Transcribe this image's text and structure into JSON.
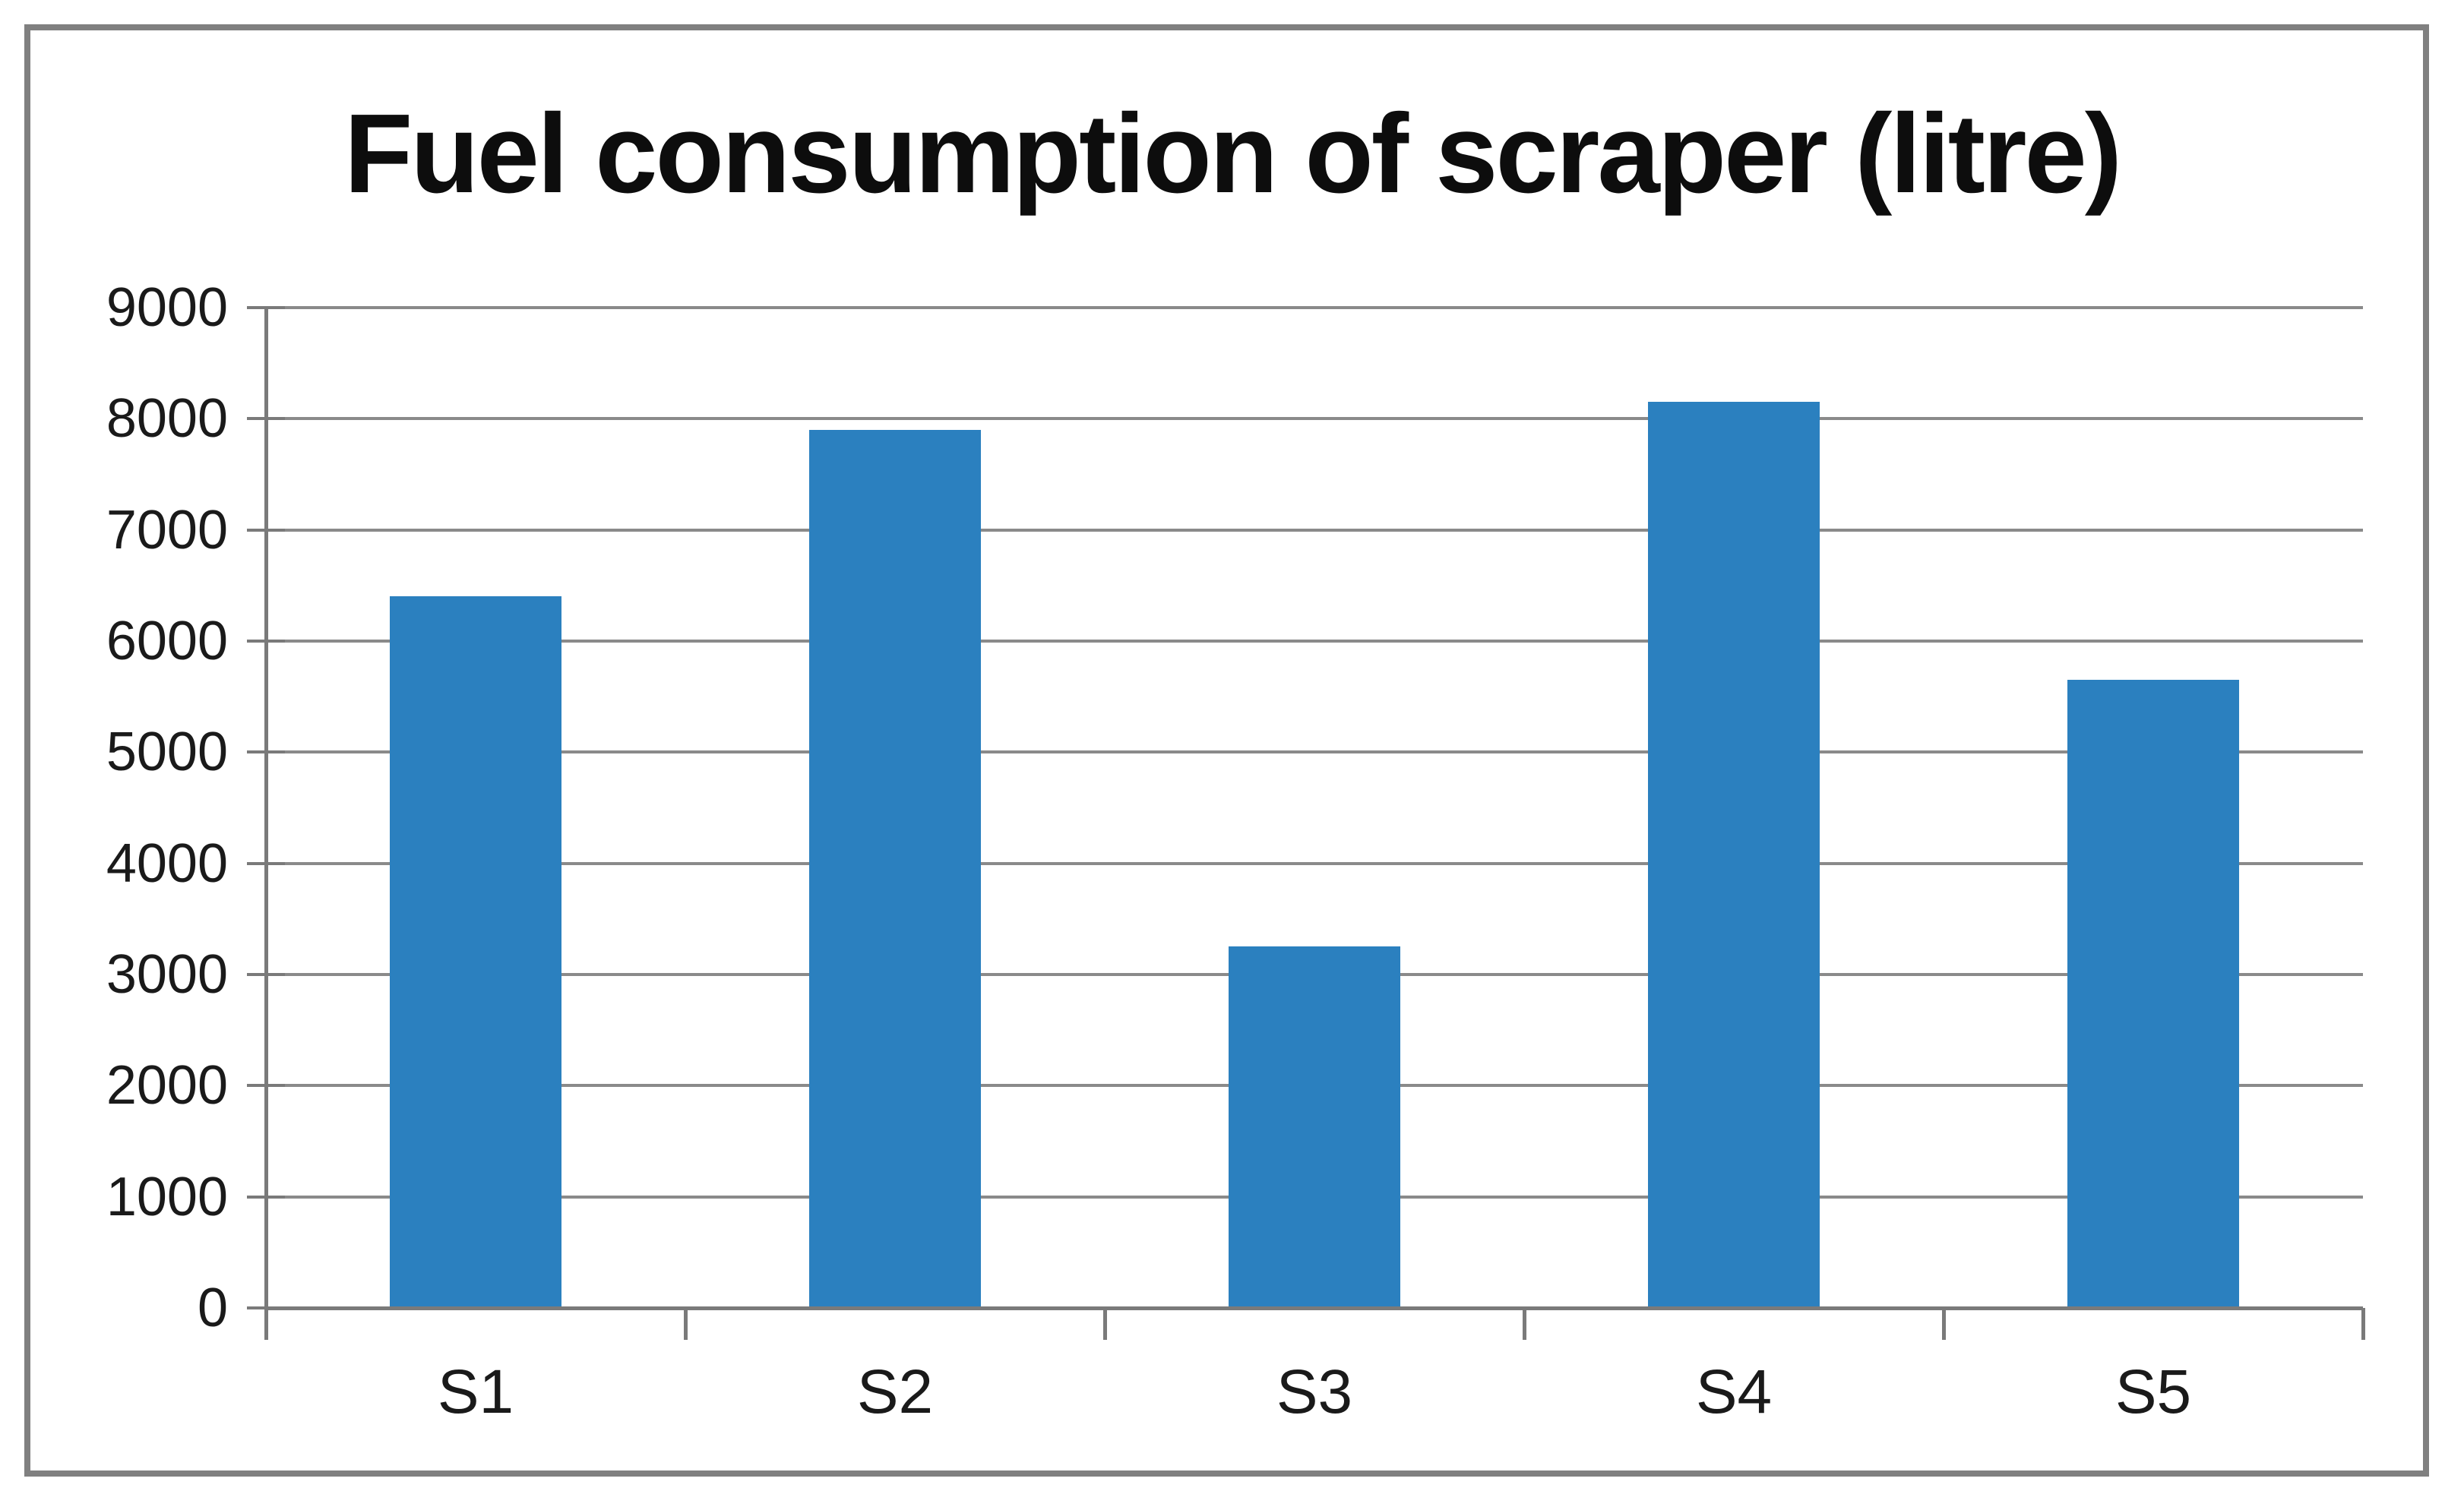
{
  "figure": {
    "background_color": "#ffffff",
    "border_color": "#808080"
  },
  "chart_data": {
    "type": "bar",
    "title": "Fuel consumption of scraper (litre)",
    "categories": [
      "S1",
      "S2",
      "S3",
      "S4",
      "S5"
    ],
    "values": [
      6400,
      7900,
      3250,
      8150,
      5650
    ],
    "xlabel": "",
    "ylabel": "",
    "ylim": [
      0,
      9000
    ],
    "y_ticks": [
      0,
      1000,
      2000,
      3000,
      4000,
      5000,
      6000,
      7000,
      8000,
      9000
    ],
    "grid": "horizontal gridlines on",
    "legend_position": "none",
    "bar_color": "#2B80BF",
    "gridline_color": "#8A8A8A",
    "axis_color": "#7A7A7A",
    "text_color": "#1a1a1a"
  }
}
